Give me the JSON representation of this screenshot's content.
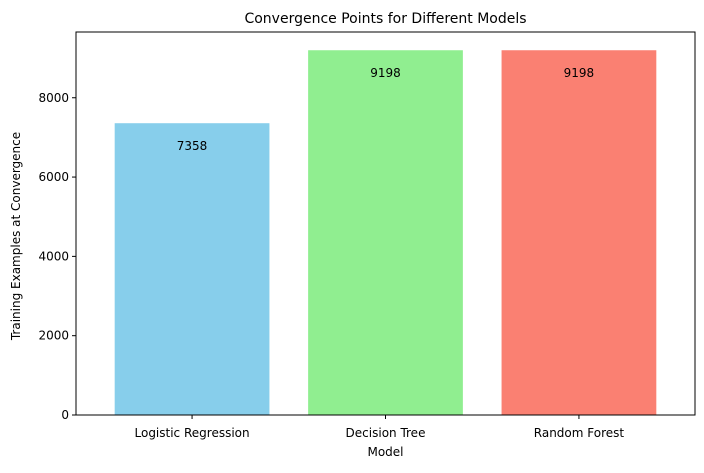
{
  "chart_data": {
    "type": "bar",
    "title": "Convergence Points for Different Models",
    "xlabel": "Model",
    "ylabel": "Training Examples at Convergence",
    "categories": [
      "Logistic Regression",
      "Decision Tree",
      "Random Forest"
    ],
    "values": [
      7358,
      9198,
      9198
    ],
    "data_labels": [
      "7358",
      "9198",
      "9198"
    ],
    "colors": [
      "#87ceeb",
      "#90ee90",
      "#fa8072"
    ],
    "ylim": [
      0,
      9658
    ],
    "yticks": [
      0,
      2000,
      4000,
      6000,
      8000
    ],
    "grid": false,
    "legend": "none"
  }
}
